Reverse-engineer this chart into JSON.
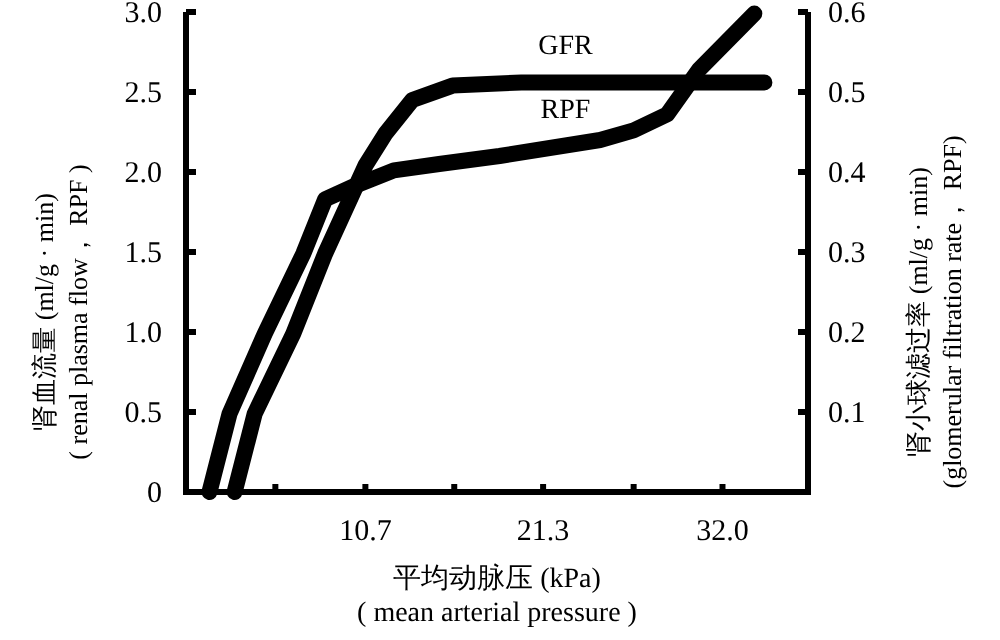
{
  "chart_data": {
    "type": "line",
    "xlabel": "平均动脉压 (kPa)\n( mean arterial pressure )",
    "ylabel": "肾血流量 (ml/g · min)\n( renal plasma flow， RPF )",
    "y2label": "肾小球滤过率 (ml/g · min)\n(glomerular filtration rate， RPF)",
    "xlim": [
      0,
      37.1
    ],
    "xticks": [
      {
        "value": 5.33,
        "label": null
      },
      10.7,
      {
        "value": 16.0,
        "label": null
      },
      21.3,
      {
        "value": 26.7,
        "label": null
      },
      {
        "value": 32.0,
        "label": "32.0"
      }
    ],
    "ylim": [
      0,
      3.0
    ],
    "yticks": [
      0,
      0.5,
      {
        "value": 1.0,
        "label": "1.0"
      },
      1.5,
      {
        "value": 2.0,
        "label": "2.0"
      },
      2.5,
      {
        "value": 3.0,
        "label": "3.0"
      }
    ],
    "y2lim": [
      0,
      0.6
    ],
    "y2ticks": [
      0.1,
      0.2,
      0.3,
      0.4,
      0.5,
      0.6
    ],
    "grid": false,
    "legend": false,
    "marker": "none",
    "line_style": "solid",
    "series": [
      {
        "name": "GFR",
        "color": "#000000",
        "axis": "y2",
        "x": [
          2.9,
          4.1,
          6.4,
          8.3,
          10.7,
          11.9,
          13.5,
          15.9,
          20.0,
          25.0,
          30.0,
          34.5
        ],
        "values": [
          0,
          0.098,
          0.198,
          0.298,
          0.408,
          0.448,
          0.49,
          0.508,
          0.512,
          0.512,
          0.512,
          0.512
        ]
      },
      {
        "name": "RPF",
        "color": "#000000",
        "x": [
          1.4,
          2.6,
          4.7,
          7.0,
          8.3,
          10.0,
          12.4,
          15.1,
          18.7,
          24.7,
          26.7,
          28.7,
          30.6,
          33.9
        ],
        "values": [
          0,
          0.49,
          0.99,
          1.49,
          1.83,
          1.91,
          2.01,
          2.05,
          2.1,
          2.2,
          2.26,
          2.36,
          2.64,
          2.99
        ]
      }
    ]
  }
}
